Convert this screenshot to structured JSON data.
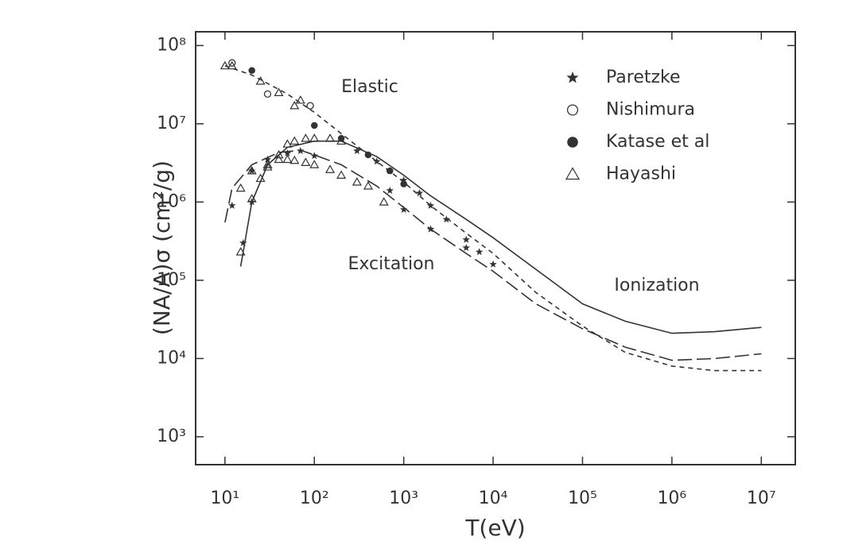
{
  "chart_data": {
    "type": "scatter",
    "x_label": "T(eV)",
    "y_label": "(NA/A)σ (cm²/g)",
    "log_x": true,
    "log_y": true,
    "xlim": [
      4.7,
      24000000
    ],
    "ylim": [
      440,
      150000000
    ],
    "xticks": [
      {
        "value": 10,
        "label": "10¹"
      },
      {
        "value": 100,
        "label": "10²"
      },
      {
        "value": 1000,
        "label": "10³"
      },
      {
        "value": 10000,
        "label": "10⁴"
      },
      {
        "value": 100000,
        "label": "10⁵"
      },
      {
        "value": 1000000,
        "label": "10⁶"
      },
      {
        "value": 10000000,
        "label": "10⁷"
      }
    ],
    "yticks": [
      {
        "value": 1000,
        "label": "10³"
      },
      {
        "value": 10000,
        "label": "10⁴"
      },
      {
        "value": 100000,
        "label": "10⁵"
      },
      {
        "value": 1000000,
        "label": "10⁶"
      },
      {
        "value": 10000000,
        "label": "10⁷"
      },
      {
        "value": 100000000,
        "label": "10⁸"
      }
    ],
    "legend": "upper right",
    "curves": [
      {
        "name": "Elastic",
        "dash": "6 5",
        "color": "#333",
        "x": [
          10,
          20,
          50,
          100,
          200,
          500,
          1000,
          2000,
          5000,
          10000,
          30000,
          100000,
          300000,
          1000000,
          3000000,
          10000000
        ],
        "values": [
          55000000,
          42000000,
          24000000,
          14000000,
          7500000,
          3300000,
          1800000,
          900000,
          400000,
          220000,
          70000,
          26000,
          12000,
          8000,
          7000,
          7000
        ]
      },
      {
        "name": "Excitation",
        "dash": "18 6",
        "color": "#333",
        "x": [
          10,
          12,
          20,
          40,
          70,
          100,
          200,
          500,
          1000,
          2000,
          5000,
          10000,
          30000,
          100000,
          300000,
          1000000,
          3000000,
          10000000
        ],
        "values": [
          550000,
          1500000,
          3000000,
          4300000,
          4600000,
          4000000,
          3000000,
          1600000,
          850000,
          450000,
          220000,
          130000,
          50000,
          24000,
          14000,
          9500,
          10000,
          11500
        ]
      },
      {
        "name": "Ionization",
        "dash": "none",
        "color": "#333",
        "x": [
          15,
          20,
          30,
          50,
          100,
          200,
          500,
          1000,
          2000,
          5000,
          10000,
          100000,
          300000,
          1000000,
          3000000,
          10000000
        ],
        "values": [
          150000,
          1000000,
          3000000,
          5000000,
          6000000,
          6000000,
          3800000,
          2200000,
          1200000,
          600000,
          350000,
          50000,
          30000,
          21000,
          22000,
          25000
        ]
      }
    ],
    "series": [
      {
        "name": "Paretzke",
        "marker": "star",
        "color": "#333",
        "x": [
          12,
          16,
          20,
          20,
          30,
          50,
          70,
          100,
          200,
          300,
          500,
          700,
          1000,
          1500,
          2000,
          3000,
          5000,
          7000,
          10000,
          700,
          1000,
          2000,
          5000
        ],
        "values": [
          900000,
          300000,
          1000000,
          2500000,
          3500000,
          4200000,
          4500000,
          3900000,
          6500000,
          4500000,
          3300000,
          2500000,
          1900000,
          1300000,
          900000,
          600000,
          330000,
          230000,
          160000,
          1400000,
          800000,
          450000,
          260000
        ]
      },
      {
        "name": "Nishimura",
        "marker": "circle-open",
        "color": "#333",
        "x": [
          12,
          30,
          90
        ],
        "values": [
          60000000,
          24000000,
          17000000
        ]
      },
      {
        "name": "Katase et al",
        "marker": "circle-filled",
        "color": "#333",
        "x": [
          20,
          100,
          200,
          400,
          700,
          1000
        ],
        "values": [
          48000000,
          9500000,
          6500000,
          4000000,
          2500000,
          1700000
        ]
      },
      {
        "name": "Hayashi",
        "marker": "triangle-open",
        "color": "#333",
        "x": [
          10,
          12,
          25,
          40,
          60,
          70,
          15,
          20,
          30,
          40,
          50,
          60,
          80,
          100,
          150,
          200,
          300,
          400,
          600,
          15,
          20,
          25,
          30,
          40,
          50,
          60,
          80,
          100,
          150,
          200
        ],
        "values": [
          55000000,
          55000000,
          35000000,
          25000000,
          17000000,
          20000000,
          1500000,
          2500000,
          3000000,
          3500000,
          3500000,
          3400000,
          3200000,
          3000000,
          2600000,
          2200000,
          1800000,
          1600000,
          1000000,
          230000,
          1100000,
          2000000,
          2800000,
          4000000,
          5500000,
          6000000,
          6500000,
          6500000,
          6500000,
          6000000
        ]
      }
    ]
  }
}
